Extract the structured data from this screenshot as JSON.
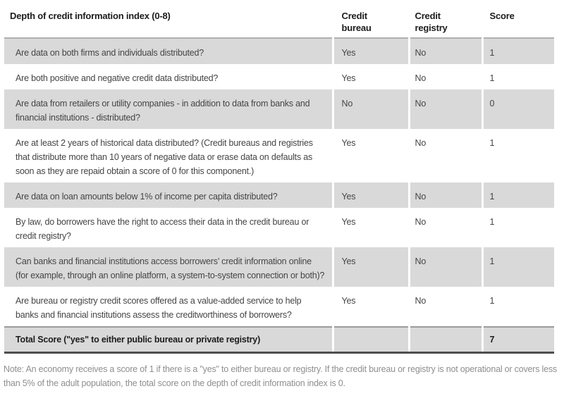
{
  "table": {
    "title": "Depth of credit information index (0-8)",
    "columns": {
      "bureau": "Credit\nbureau",
      "registry": "Credit\nregistry",
      "score": "Score"
    },
    "rows": [
      {
        "question": "Are data on both firms and individuals distributed?",
        "bureau": "Yes",
        "registry": "No",
        "score": "1"
      },
      {
        "question": "Are both positive and negative credit data distributed?",
        "bureau": "Yes",
        "registry": "No",
        "score": "1"
      },
      {
        "question": "Are data from retailers or utility companies - in addition to data from banks and financial institutions - distributed?",
        "bureau": "No",
        "registry": "No",
        "score": "0"
      },
      {
        "question": "Are at least 2 years of historical data distributed? (Credit bureaus and registries that distribute more than 10 years of negative data or erase data on defaults as soon as they are repaid obtain a score of 0 for this component.)",
        "bureau": "Yes",
        "registry": "No",
        "score": "1"
      },
      {
        "question": "Are data on loan amounts below 1% of income per capita distributed?",
        "bureau": "Yes",
        "registry": "No",
        "score": "1"
      },
      {
        "question": "By law, do borrowers have the right to access their data in the credit bureau or credit registry?",
        "bureau": "Yes",
        "registry": "No",
        "score": "1"
      },
      {
        "question": "Can banks and financial institutions access borrowers’ credit information online (for example, through an online platform, a system-to-system connection or both)?",
        "bureau": "Yes",
        "registry": "No",
        "score": "1"
      },
      {
        "question": "Are bureau or registry credit scores offered as a value-added service to help banks and financial institutions assess the creditworthiness of borrowers?",
        "bureau": "Yes",
        "registry": "No",
        "score": "1"
      }
    ],
    "total": {
      "label": "Total Score (\"yes\" to either public bureau or private registry)",
      "score": "7"
    }
  },
  "note": "Note: An economy receives a score of 1 if there is a \"yes\" to either bureau or registry. If the credit bureau or registry is not operational or covers less than 5% of the adult population, the total score on the depth of credit information index is 0.",
  "colors": {
    "row_band": "#d9d9d9",
    "header_rule": "#b0b0b0",
    "total_top_rule": "#9b9b9b",
    "total_bottom_rule": "#4e4e50",
    "heading_text": "#1c1c1c",
    "body_text": "#454545",
    "note_text": "#8f8f8f"
  }
}
